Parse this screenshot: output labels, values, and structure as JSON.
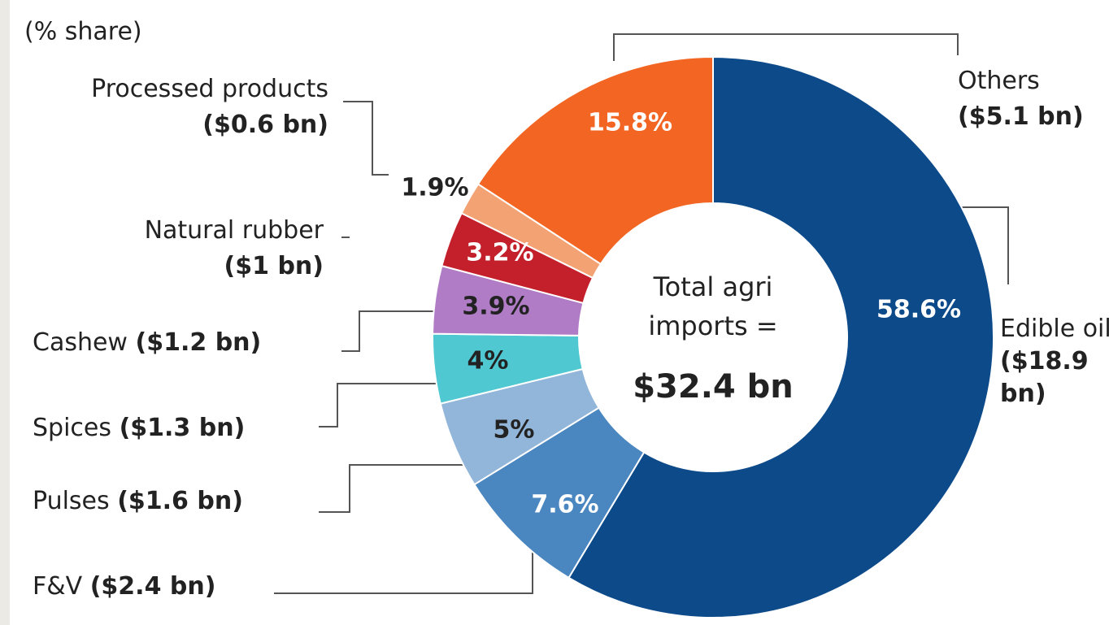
{
  "chart_data": {
    "type": "donut",
    "subtitle": "(% share)",
    "center_text": "Total agri imports =",
    "center_value": "$32.4 bn",
    "categories": [
      "Edible oil",
      "F&V",
      "Pulses",
      "Spices",
      "Cashew",
      "Natural rubber",
      "Processed products",
      "Others"
    ],
    "values": [
      58.6,
      7.6,
      5,
      4,
      3.9,
      3.2,
      1.9,
      15.8
    ],
    "value_labels": [
      "58.6%",
      "7.6%",
      "5%",
      "4%",
      "3.9%",
      "3.2%",
      "1.9%",
      "15.8%"
    ],
    "amount_labels": [
      "($18.9 bn)",
      "($2.4 bn)",
      "($1.6 bn)",
      "($1.3 bn)",
      "($1.2 bn)",
      "($1 bn)",
      "($0.6 bn)",
      "($5.1 bn)"
    ],
    "colors": [
      "#0d4a8a",
      "#4a86c0",
      "#92b6d9",
      "#4fc8d2",
      "#b07cc6",
      "#c3202b",
      "#f3a373",
      "#f26522"
    ]
  }
}
